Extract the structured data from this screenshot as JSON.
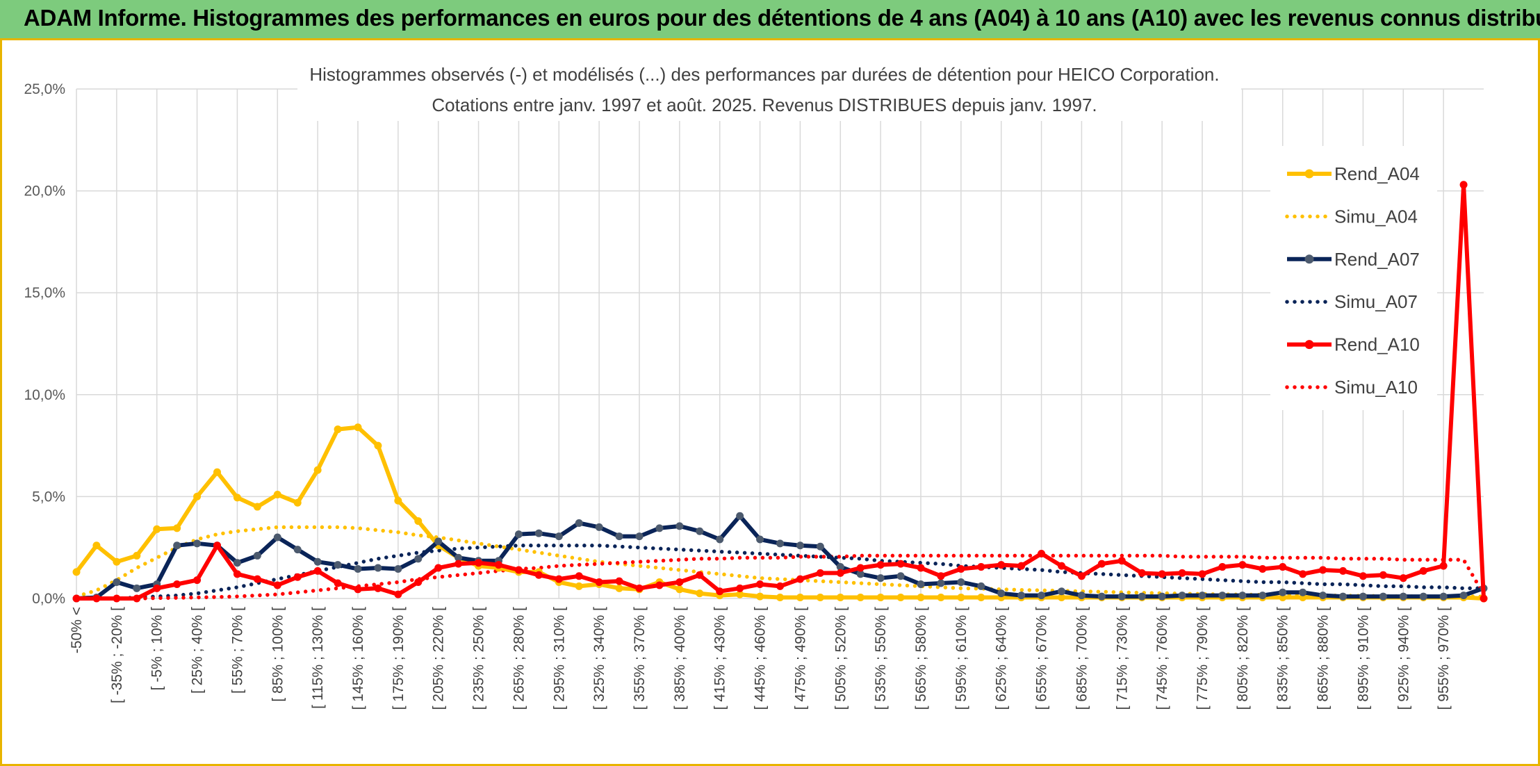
{
  "header": {
    "title": "ADAM Informe. Histogrammes des performances en euros pour des détentions de 4 ans (A04) à 10 ans (A10) avec les revenus connus distribués"
  },
  "colors": {
    "banner": "#7dcb7d",
    "accent": "#e8b400",
    "A04": "#ffc000",
    "A07": "#0a2458",
    "A07_marker": "#4c5a6e",
    "A10": "#ff0000",
    "grid": "#d9d9d9"
  },
  "chart_data": {
    "type": "line",
    "title": "Histogrammes observés (-) et modélisés (...) des performances par durées de détention pour HEICO Corporation.",
    "subtitle": "Cotations entre janv. 1997 et août. 2025. Revenus DISTRIBUES depuis janv. 1997.",
    "ylim": [
      0,
      25
    ],
    "yticks": [
      "0,0%",
      "5,0%",
      "10,0%",
      "15,0%",
      "20,0%",
      "25,0%"
    ],
    "grid": true,
    "legend_position": "right",
    "x_labels": [
      "-50% <",
      "[ -35% ; -20% [",
      "[ -5% ; 10% [",
      "[ 25% ; 40% [",
      "[ 55% ; 70% [",
      "[ 85% ; 100% [",
      "[ 115% ; 130% [",
      "[ 145% ; 160% [",
      "[ 175% ; 190% [",
      "[ 205% ; 220% [",
      "[ 235% ; 250% [",
      "[ 265% ; 280% [",
      "[ 295% ; 310% [",
      "[ 325% ; 340% [",
      "[ 355% ; 370% [",
      "[ 385% ; 400% [",
      "[ 415% ; 430% [",
      "[ 445% ; 460% [",
      "[ 475% ; 490% [",
      "[ 505% ; 520% [",
      "[ 535% ; 550% [",
      "[ 565% ; 580% [",
      "[ 595% ; 610% [",
      "[ 625% ; 640% [",
      "[ 655% ; 670% [",
      "[ 685% ; 700% [",
      "[ 715% ; 730% [",
      "[ 745% ; 760% [",
      "[ 775% ; 790% [",
      "[ 805% ; 820% [",
      "[ 835% ; 850% [",
      "[ 865% ; 880% [",
      "[ 895% ; 910% [",
      "[ 925% ; 940% [",
      "[ 955% ; 970% ["
    ],
    "series": [
      {
        "name": "Rend_A04",
        "style": "solid",
        "color": "#ffc000",
        "values": [
          1.3,
          2.6,
          1.8,
          2.1,
          3.4,
          3.45,
          5.0,
          6.2,
          4.95,
          4.5,
          5.1,
          4.7,
          6.3,
          8.3,
          8.4,
          7.5,
          4.8,
          3.8,
          2.6,
          2.0,
          1.6,
          1.5,
          1.3,
          1.3,
          0.8,
          0.6,
          0.7,
          0.5,
          0.45,
          0.8,
          0.45,
          0.25,
          0.15,
          0.2,
          0.1,
          0.05,
          0.05,
          0.05,
          0.05,
          0.05,
          0.05,
          0.05,
          0.05,
          0.05,
          0.05,
          0.05,
          0.05,
          0.05,
          0.05,
          0.05,
          0.05,
          0.05,
          0.05,
          0.05,
          0.05,
          0.05,
          0.05,
          0.05,
          0.05,
          0.05,
          0.05,
          0.05,
          0.05,
          0.05,
          0.05,
          0.05,
          0.05,
          0.05,
          0.05,
          0.05,
          0.0
        ]
      },
      {
        "name": "Simu_A04",
        "style": "dotted",
        "color": "#ffc000",
        "values": [
          0.1,
          0.4,
          0.9,
          1.5,
          2.0,
          2.5,
          2.9,
          3.15,
          3.3,
          3.4,
          3.5,
          3.5,
          3.5,
          3.5,
          3.45,
          3.35,
          3.25,
          3.1,
          3.0,
          2.85,
          2.7,
          2.55,
          2.4,
          2.25,
          2.1,
          1.95,
          1.8,
          1.7,
          1.6,
          1.5,
          1.4,
          1.3,
          1.2,
          1.1,
          1.0,
          0.95,
          0.9,
          0.85,
          0.8,
          0.75,
          0.7,
          0.65,
          0.6,
          0.55,
          0.5,
          0.48,
          0.45,
          0.42,
          0.4,
          0.38,
          0.35,
          0.33,
          0.3,
          0.28,
          0.26,
          0.24,
          0.22,
          0.2,
          0.19,
          0.18,
          0.17,
          0.16,
          0.15,
          0.14,
          0.13,
          0.12,
          0.11,
          0.1,
          0.1,
          0.1,
          0.1
        ]
      },
      {
        "name": "Rend_A07",
        "style": "solid",
        "color": "#0a2458",
        "values": [
          0.0,
          0.05,
          0.8,
          0.5,
          0.7,
          2.6,
          2.7,
          2.6,
          1.75,
          2.1,
          3.0,
          2.4,
          1.8,
          1.65,
          1.45,
          1.5,
          1.45,
          1.95,
          2.8,
          2.0,
          1.85,
          1.85,
          3.15,
          3.2,
          3.05,
          3.7,
          3.5,
          3.05,
          3.05,
          3.45,
          3.55,
          3.3,
          2.9,
          4.05,
          2.9,
          2.7,
          2.6,
          2.55,
          1.55,
          1.2,
          1.0,
          1.1,
          0.7,
          0.75,
          0.8,
          0.6,
          0.25,
          0.15,
          0.15,
          0.35,
          0.15,
          0.1,
          0.1,
          0.1,
          0.1,
          0.15,
          0.15,
          0.15,
          0.15,
          0.15,
          0.3,
          0.3,
          0.15,
          0.1,
          0.1,
          0.1,
          0.1,
          0.1,
          0.1,
          0.15,
          0.5
        ]
      },
      {
        "name": "Simu_A07",
        "style": "dotted",
        "color": "#0a2458",
        "values": [
          0.0,
          0.0,
          0.0,
          0.05,
          0.1,
          0.15,
          0.25,
          0.4,
          0.55,
          0.75,
          0.95,
          1.15,
          1.35,
          1.55,
          1.75,
          1.95,
          2.1,
          2.25,
          2.35,
          2.45,
          2.5,
          2.55,
          2.6,
          2.6,
          2.6,
          2.6,
          2.6,
          2.55,
          2.5,
          2.45,
          2.4,
          2.35,
          2.3,
          2.25,
          2.2,
          2.15,
          2.1,
          2.05,
          2.0,
          1.95,
          1.85,
          1.8,
          1.75,
          1.7,
          1.6,
          1.55,
          1.5,
          1.45,
          1.4,
          1.3,
          1.25,
          1.2,
          1.15,
          1.1,
          1.05,
          1.0,
          0.95,
          0.9,
          0.85,
          0.8,
          0.8,
          0.75,
          0.7,
          0.7,
          0.65,
          0.6,
          0.6,
          0.55,
          0.55,
          0.5,
          0.5
        ]
      },
      {
        "name": "Rend_A10",
        "style": "solid",
        "color": "#ff0000",
        "values": [
          0.0,
          0.0,
          0.0,
          0.0,
          0.5,
          0.7,
          0.9,
          2.6,
          1.2,
          0.95,
          0.65,
          1.05,
          1.35,
          0.75,
          0.45,
          0.5,
          0.2,
          0.8,
          1.5,
          1.7,
          1.75,
          1.65,
          1.4,
          1.15,
          0.95,
          1.1,
          0.8,
          0.85,
          0.5,
          0.65,
          0.8,
          1.15,
          0.35,
          0.5,
          0.7,
          0.6,
          0.95,
          1.25,
          1.25,
          1.5,
          1.65,
          1.7,
          1.5,
          1.1,
          1.45,
          1.55,
          1.65,
          1.6,
          2.2,
          1.6,
          1.1,
          1.7,
          1.85,
          1.25,
          1.2,
          1.25,
          1.2,
          1.55,
          1.65,
          1.45,
          1.55,
          1.2,
          1.4,
          1.35,
          1.1,
          1.15,
          1.0,
          1.35,
          1.6,
          20.3,
          0.0
        ]
      },
      {
        "name": "Simu_A10",
        "style": "dotted",
        "color": "#ff0000",
        "values": [
          0.0,
          0.0,
          0.0,
          0.0,
          0.02,
          0.03,
          0.05,
          0.07,
          0.1,
          0.15,
          0.2,
          0.3,
          0.4,
          0.5,
          0.6,
          0.7,
          0.8,
          0.95,
          1.05,
          1.15,
          1.25,
          1.35,
          1.45,
          1.5,
          1.6,
          1.65,
          1.7,
          1.75,
          1.8,
          1.85,
          1.9,
          1.95,
          1.95,
          2.0,
          2.0,
          2.0,
          2.05,
          2.05,
          2.05,
          2.1,
          2.1,
          2.1,
          2.1,
          2.1,
          2.1,
          2.1,
          2.1,
          2.1,
          2.1,
          2.1,
          2.1,
          2.1,
          2.1,
          2.1,
          2.1,
          2.05,
          2.05,
          2.05,
          2.05,
          2.0,
          2.0,
          2.0,
          2.0,
          1.95,
          1.95,
          1.95,
          1.9,
          1.9,
          1.9,
          1.9,
          0.2
        ]
      }
    ]
  }
}
